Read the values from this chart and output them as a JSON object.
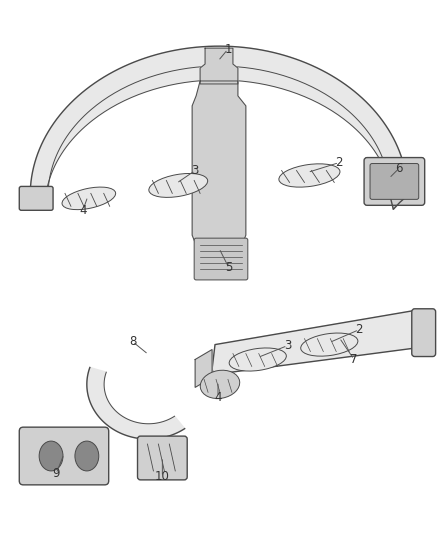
{
  "bg_color": "#ffffff",
  "fig_width": 4.38,
  "fig_height": 5.33,
  "dpi": 100,
  "line_color": "#4a4a4a",
  "fill_light": "#e8e8e8",
  "fill_mid": "#d0d0d0",
  "fill_dark": "#b0b0b0",
  "text_color": "#333333",
  "font_size": 8.5
}
